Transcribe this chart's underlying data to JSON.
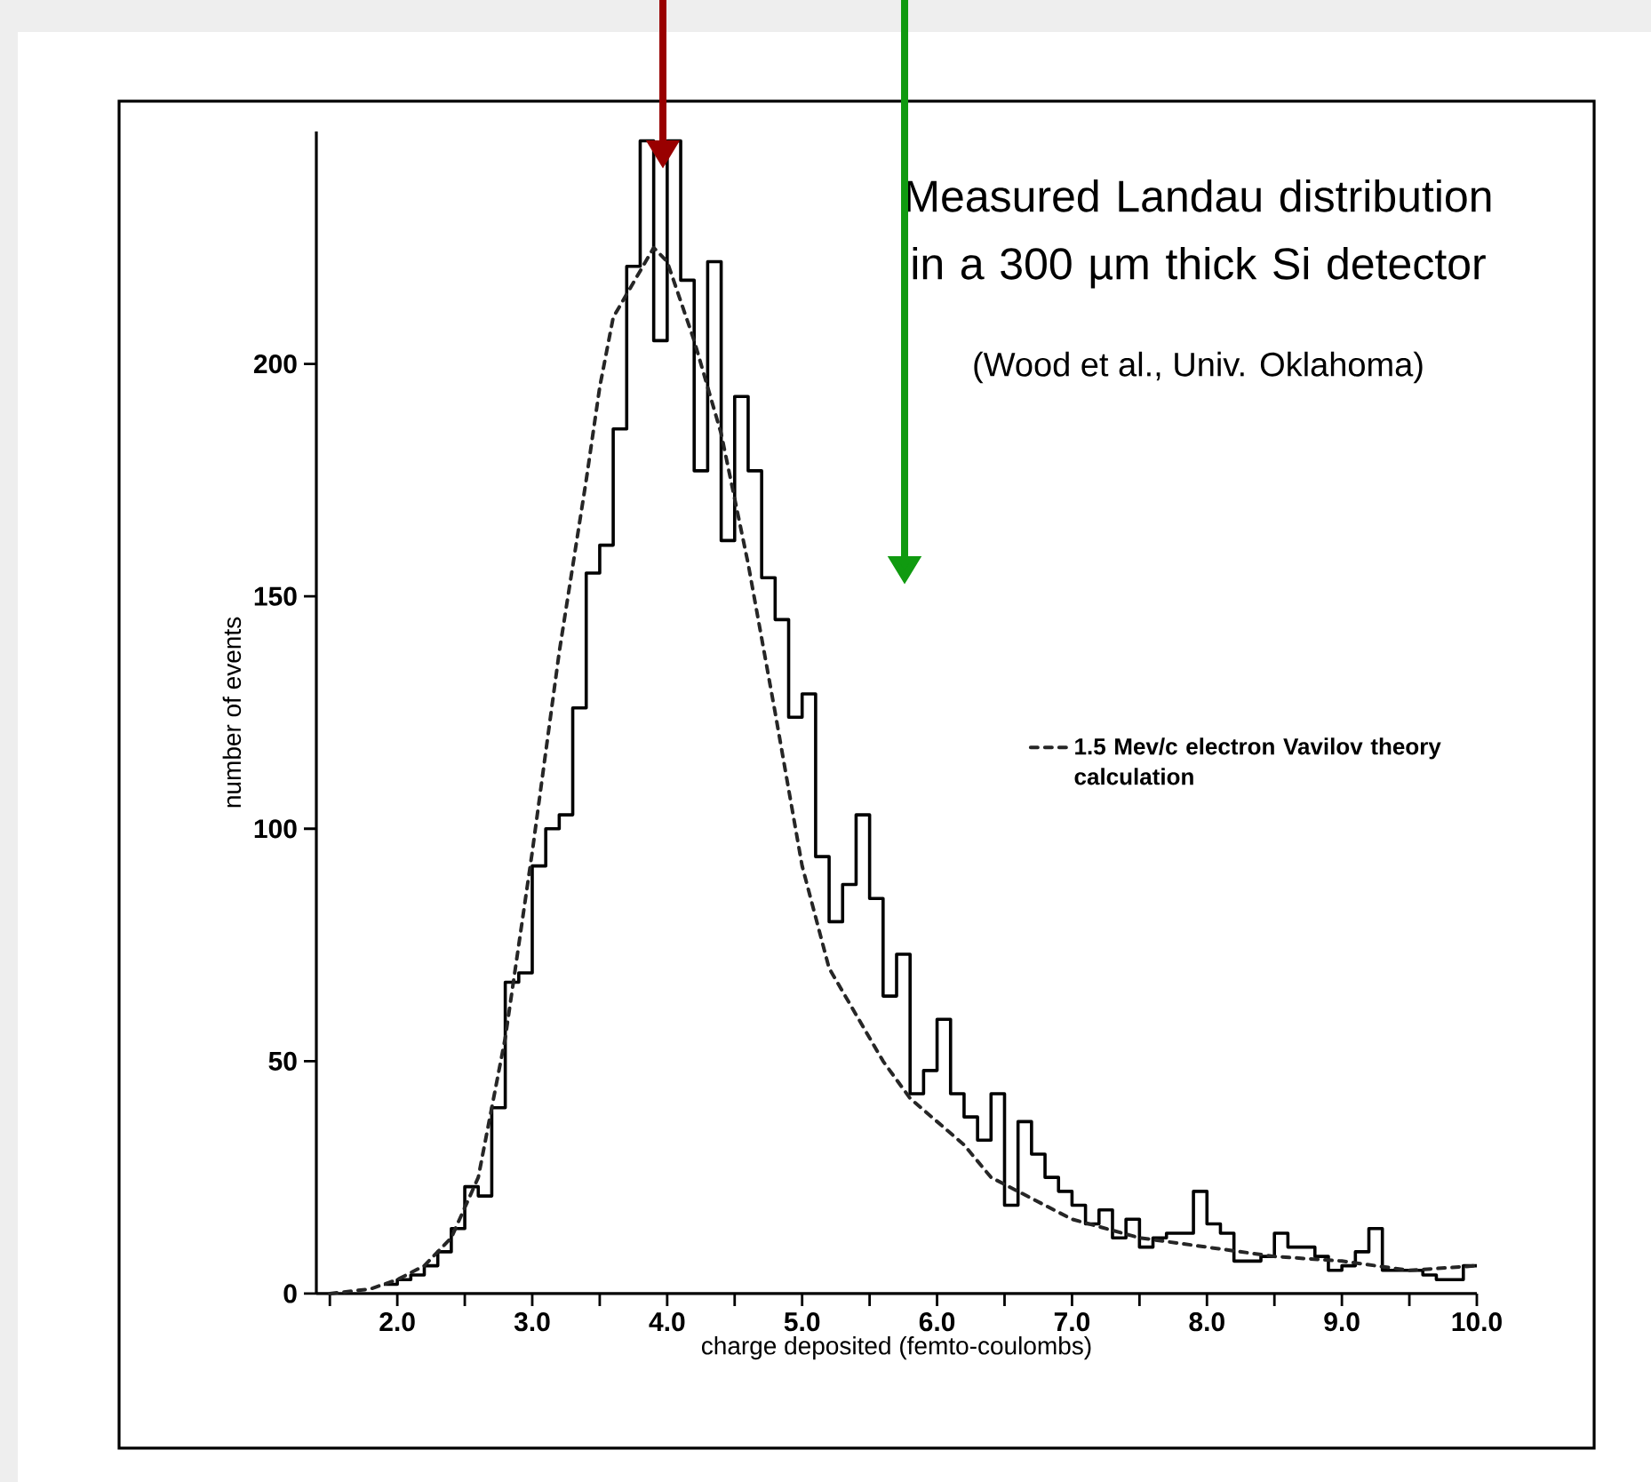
{
  "chart_data": {
    "type": "histogram",
    "title": "Measured Landau distribution in a 300 µm thick Si detector",
    "subtitle": "(Wood et al., Univ. Oklahoma)",
    "xlabel": "charge deposited (femto-coulombs)",
    "ylabel": "number of events",
    "xlim": [
      1.4,
      10.0
    ],
    "ylim": [
      0,
      250
    ],
    "xticks": [
      {
        "value": 1.5,
        "label": null
      },
      {
        "value": 2,
        "label": "2.0"
      },
      {
        "value": 2.5,
        "label": null
      },
      {
        "value": 3,
        "label": "3.0"
      },
      {
        "value": 3.5,
        "label": null
      },
      {
        "value": 4,
        "label": "4.0"
      },
      {
        "value": 4.5,
        "label": null
      },
      {
        "value": 5,
        "label": "5.0"
      },
      {
        "value": 5.5,
        "label": null
      },
      {
        "value": 6,
        "label": "6.0"
      },
      {
        "value": 6.5,
        "label": null
      },
      {
        "value": 7,
        "label": "7.0"
      },
      {
        "value": 7.5,
        "label": null
      },
      {
        "value": 8,
        "label": "8.0"
      },
      {
        "value": 8.5,
        "label": null
      },
      {
        "value": 9,
        "label": "9.0"
      },
      {
        "value": 9.5,
        "label": null
      },
      {
        "value": 10,
        "label": "10.0"
      }
    ],
    "yticks": [
      0,
      50,
      100,
      150,
      200
    ],
    "legend": "right",
    "grid": false,
    "series": [
      {
        "type": "histogram",
        "color": "#000000",
        "bins": [
          1.9,
          2.0,
          2.1,
          2.2,
          2.3,
          2.4,
          2.5,
          2.6,
          2.7,
          2.8,
          2.9,
          3.0,
          3.1,
          3.2,
          3.3,
          3.4,
          3.5,
          3.6,
          3.7,
          3.8,
          3.9,
          4.0,
          4.1,
          4.2,
          4.3,
          4.4,
          4.5,
          4.6,
          4.7,
          4.8,
          4.9,
          5.0,
          5.1,
          5.2,
          5.3,
          5.4,
          5.5,
          5.6,
          5.7,
          5.8,
          5.9,
          6.0,
          6.1,
          6.2,
          6.3,
          6.4,
          6.5,
          6.6,
          6.7,
          6.8,
          6.9,
          7.0,
          7.1,
          7.2,
          7.3,
          7.4,
          7.5,
          7.6,
          7.7,
          7.8,
          7.9,
          8.0,
          8.1,
          8.2,
          8.3,
          8.4,
          8.5,
          8.6,
          8.7,
          8.8,
          8.9,
          9.0,
          9.1,
          9.2,
          9.3,
          9.4,
          9.5,
          9.6,
          9.7,
          9.8,
          9.9,
          10.0
        ],
        "values": [
          2,
          3,
          4,
          6,
          9,
          14,
          23,
          21,
          40,
          67,
          69,
          92,
          100,
          103,
          126,
          155,
          161,
          186,
          221,
          248,
          205,
          248,
          218,
          177,
          222,
          162,
          193,
          177,
          154,
          145,
          124,
          129,
          94,
          80,
          88,
          103,
          85,
          64,
          73,
          43,
          48,
          59,
          43,
          38,
          33,
          43,
          19,
          37,
          30,
          25,
          22,
          19,
          15,
          18,
          12,
          16,
          10,
          12,
          13,
          13,
          22,
          15,
          13,
          7,
          7,
          8,
          13,
          10,
          10,
          8,
          5,
          6,
          9,
          14,
          5,
          5,
          5,
          4,
          3,
          3,
          6
        ]
      },
      {
        "type": "line",
        "name": "1.5 Mev/c electron Vavilov theory calculation",
        "color": "#262626",
        "line_style": "dashed",
        "x": [
          1.5,
          1.8,
          2.0,
          2.2,
          2.4,
          2.6,
          2.8,
          3.0,
          3.2,
          3.4,
          3.5,
          3.6,
          3.7,
          3.8,
          3.9,
          4.0,
          4.2,
          4.4,
          4.6,
          4.8,
          5.0,
          5.2,
          5.4,
          5.6,
          5.8,
          6.0,
          6.2,
          6.4,
          6.6,
          6.8,
          7.0,
          7.5,
          8.0,
          8.5,
          9.0,
          9.5,
          10.0
        ],
        "values": [
          0,
          1,
          3,
          6,
          12,
          25,
          55,
          95,
          138,
          175,
          195,
          210,
          215,
          220,
          225,
          222,
          205,
          185,
          157,
          125,
          92,
          70,
          60,
          50,
          42,
          37,
          32,
          25,
          22,
          19,
          16,
          12,
          10,
          8,
          7,
          5,
          6
        ]
      }
    ]
  }
}
